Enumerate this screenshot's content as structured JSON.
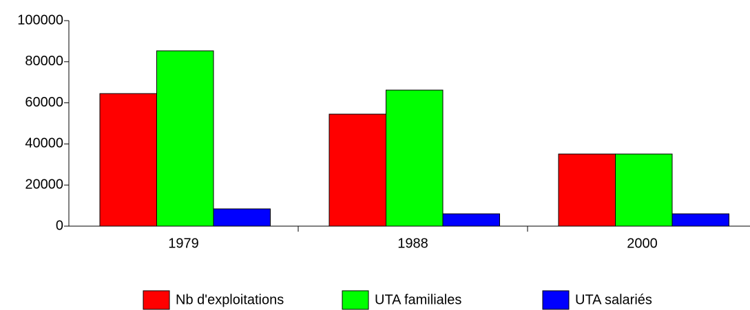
{
  "chart_data": {
    "type": "bar",
    "categories": [
      "1979",
      "1988",
      "2000"
    ],
    "series": [
      {
        "name": "Nb d'exploitations",
        "color": "#ff0000",
        "values": [
          64500,
          54500,
          35100
        ]
      },
      {
        "name": "UTA familiales",
        "color": "#00ff00",
        "values": [
          85300,
          66200,
          35100
        ]
      },
      {
        "name": "UTA salariés",
        "color": "#0000ff",
        "values": [
          8400,
          6000,
          6000
        ]
      }
    ],
    "ylim": [
      0,
      100000
    ],
    "yticks": [
      0,
      20000,
      40000,
      60000,
      80000,
      100000
    ],
    "legend": "bottom"
  }
}
